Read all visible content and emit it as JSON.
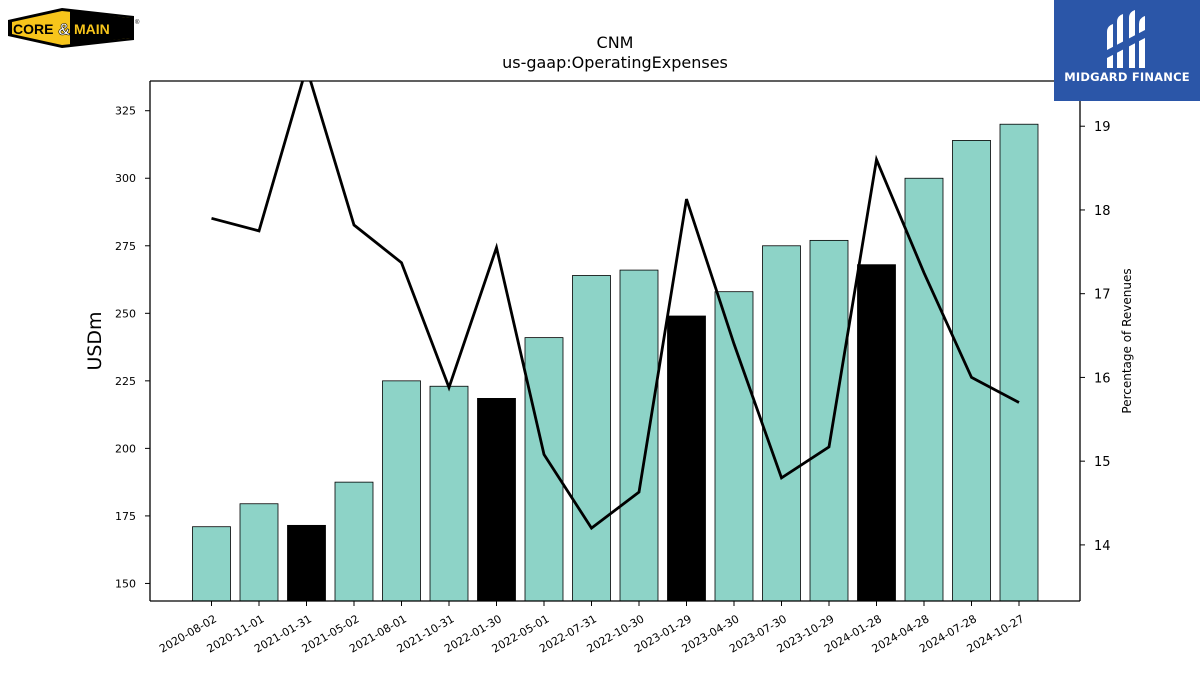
{
  "brand_left": {
    "name": "CORE&MAIN",
    "word1": "CORE",
    "amp": "&",
    "word2": "MAIN",
    "reg": "®"
  },
  "brand_right": {
    "name": "MIDGARD FINANCE"
  },
  "colors": {
    "bar": "#8dd3c7",
    "bar_highlight": "#000000",
    "line": "#000000",
    "brand_blue": "#2b56a8",
    "brand_yellow": "#f7c51b"
  },
  "chart_data": {
    "type": "bar",
    "title": "CNM",
    "subtitle": "us-gaap:OperatingExpenses",
    "ylabel": "USDm",
    "ylabel_right": "Percentage of Revenues",
    "categories": [
      "2020-08-02",
      "2020-11-01",
      "2021-01-31",
      "2021-05-02",
      "2021-08-01",
      "2021-10-31",
      "2022-01-30",
      "2022-05-01",
      "2022-07-31",
      "2022-10-30",
      "2023-01-29",
      "2023-04-30",
      "2023-07-30",
      "2023-10-29",
      "2024-01-28",
      "2024-04-28",
      "2024-07-28",
      "2024-10-27"
    ],
    "series": [
      {
        "type": "bar",
        "axis": "left",
        "values": [
          171,
          179.5,
          171.5,
          187.5,
          225,
          223,
          218.5,
          241,
          264,
          266,
          249,
          258,
          275,
          277,
          268,
          300,
          314,
          320
        ],
        "highlighted": [
          false,
          false,
          true,
          false,
          false,
          false,
          true,
          false,
          false,
          false,
          true,
          false,
          false,
          false,
          true,
          false,
          false,
          false
        ]
      },
      {
        "type": "line",
        "axis": "right",
        "values": [
          17.9,
          17.75,
          19.7,
          17.82,
          17.37,
          15.88,
          17.55,
          15.08,
          14.2,
          14.63,
          18.13,
          16.4,
          14.8,
          15.17,
          18.6,
          17.25,
          16.0,
          15.7
        ]
      }
    ],
    "ylim": [
      143.5,
      336
    ],
    "yticks": [
      150,
      175,
      200,
      225,
      250,
      275,
      300,
      325
    ],
    "ylim_right": [
      13.33,
      19.54
    ],
    "yticks_right": [
      14,
      15,
      16,
      17,
      18,
      19
    ],
    "grid": false,
    "legend": "none"
  }
}
